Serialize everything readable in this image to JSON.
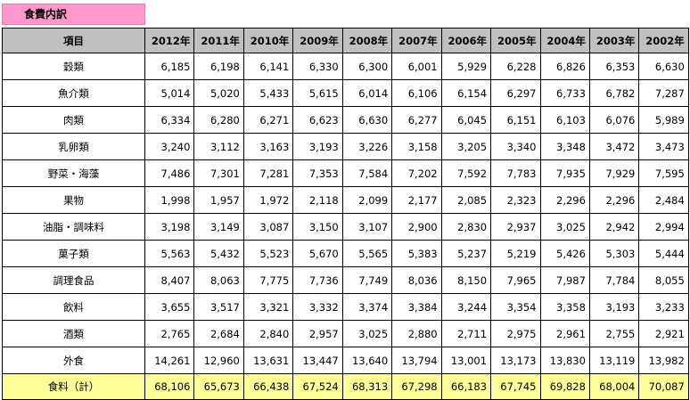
{
  "title": "食費内訳",
  "header": {
    "item_label": "項目",
    "years": [
      "2012年",
      "2011年",
      "2010年",
      "2009年",
      "2008年",
      "2007年",
      "2006年",
      "2005年",
      "2004年",
      "2003年",
      "2002年"
    ]
  },
  "rows": [
    {
      "label": "穀類",
      "values": [
        "6,185",
        "6,198",
        "6,141",
        "6,330",
        "6,300",
        "6,001",
        "5,929",
        "6,228",
        "6,826",
        "6,353",
        "6,630"
      ]
    },
    {
      "label": "魚介類",
      "values": [
        "5,014",
        "5,020",
        "5,433",
        "5,615",
        "6,014",
        "6,106",
        "6,154",
        "6,297",
        "6,733",
        "6,782",
        "7,287"
      ]
    },
    {
      "label": "肉類",
      "values": [
        "6,334",
        "6,280",
        "6,271",
        "6,623",
        "6,630",
        "6,277",
        "6,045",
        "6,151",
        "6,103",
        "6,076",
        "5,989"
      ]
    },
    {
      "label": "乳卵類",
      "values": [
        "3,240",
        "3,112",
        "3,163",
        "3,193",
        "3,226",
        "3,158",
        "3,205",
        "3,340",
        "3,348",
        "3,472",
        "3,473"
      ]
    },
    {
      "label": "野菜・海藻",
      "values": [
        "7,486",
        "7,301",
        "7,281",
        "7,353",
        "7,584",
        "7,202",
        "7,592",
        "7,783",
        "7,935",
        "7,929",
        "7,595"
      ]
    },
    {
      "label": "果物",
      "values": [
        "1,998",
        "1,957",
        "1,972",
        "2,118",
        "2,099",
        "2,177",
        "2,085",
        "2,323",
        "2,296",
        "2,296",
        "2,484"
      ]
    },
    {
      "label": "油脂・調味料",
      "values": [
        "3,198",
        "3,149",
        "3,087",
        "3,150",
        "3,107",
        "2,900",
        "2,830",
        "2,937",
        "3,025",
        "2,942",
        "2,994"
      ]
    },
    {
      "label": "菓子類",
      "values": [
        "5,563",
        "5,432",
        "5,523",
        "5,670",
        "5,565",
        "5,383",
        "5,237",
        "5,219",
        "5,426",
        "5,303",
        "5,444"
      ]
    },
    {
      "label": "調理食品",
      "values": [
        "8,407",
        "8,063",
        "7,775",
        "7,736",
        "7,749",
        "8,036",
        "8,150",
        "7,965",
        "7,987",
        "7,784",
        "8,055"
      ]
    },
    {
      "label": "飲料",
      "values": [
        "3,655",
        "3,517",
        "3,321",
        "3,332",
        "3,374",
        "3,384",
        "3,244",
        "3,354",
        "3,358",
        "3,193",
        "3,233"
      ]
    },
    {
      "label": "酒類",
      "values": [
        "2,765",
        "2,684",
        "2,840",
        "2,957",
        "3,025",
        "2,880",
        "2,711",
        "2,975",
        "2,961",
        "2,755",
        "2,921"
      ]
    },
    {
      "label": "外食",
      "values": [
        "14,261",
        "12,960",
        "13,631",
        "13,447",
        "13,640",
        "13,794",
        "13,001",
        "13,173",
        "13,830",
        "13,119",
        "13,982"
      ]
    }
  ],
  "total": {
    "label": "食料（計）",
    "values": [
      "68,106",
      "65,673",
      "66,438",
      "67,524",
      "68,313",
      "67,298",
      "66,183",
      "67,745",
      "69,828",
      "68,004",
      "70,087"
    ]
  },
  "colors": {
    "title_bg": "#ff99cc",
    "header_bg": "#c0c0c0",
    "total_bg": "#ffff99"
  }
}
